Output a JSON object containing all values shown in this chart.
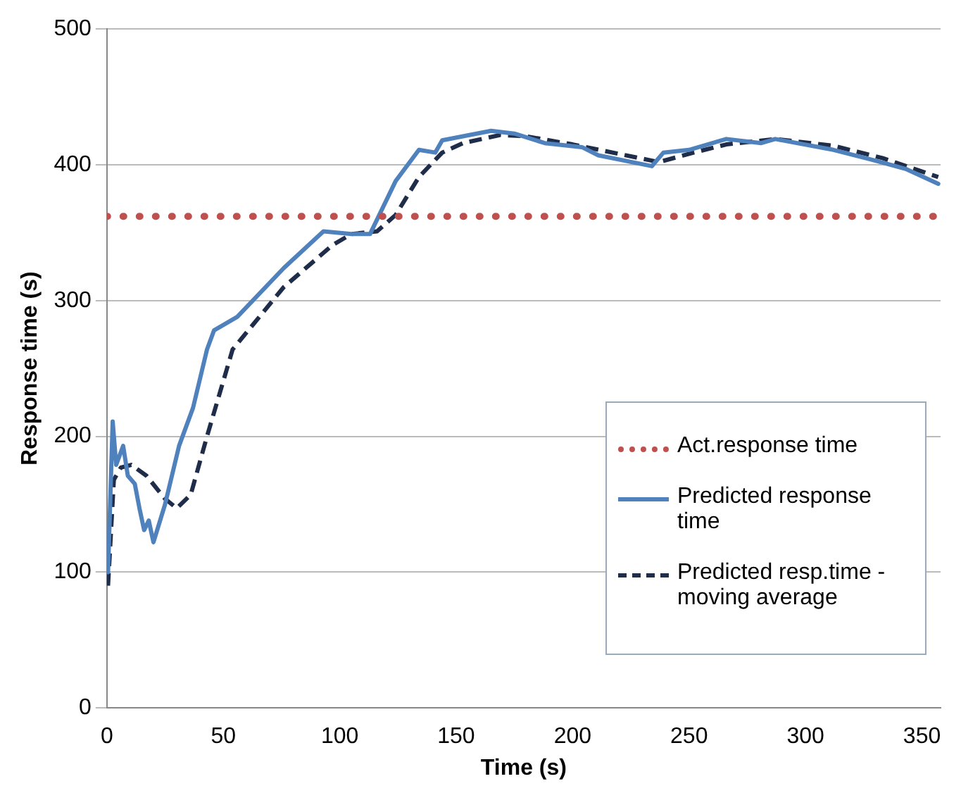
{
  "chart_data": {
    "type": "line",
    "xlabel": "Time (s)",
    "ylabel": "Response time (s)",
    "xlim": [
      0,
      358
    ],
    "xticks": [
      0,
      50,
      100,
      150,
      200,
      250,
      300,
      350
    ],
    "ylim": [
      0,
      500
    ],
    "yticks": [
      0,
      100,
      200,
      300,
      400,
      500
    ],
    "grid": "y",
    "legend": "bottom right",
    "marker": "none",
    "series": [
      {
        "name": "Act.response time",
        "color": "#c0504d",
        "line_style": "dotted",
        "x": [
          0,
          358
        ],
        "values": [
          362,
          362
        ]
      },
      {
        "name": "Predicted response time",
        "color": "#4f81bd",
        "line_style": "solid",
        "x": [
          0.5,
          2.5,
          4,
          7,
          9,
          12,
          14,
          16,
          18,
          20,
          25,
          31,
          37,
          43,
          46,
          56,
          76,
          93,
          105,
          113,
          124,
          134,
          141,
          144,
          165,
          175,
          188,
          204,
          211,
          234,
          239,
          250,
          266,
          281,
          287,
          312,
          328,
          343,
          357
        ],
        "values": [
          100,
          211,
          179,
          193,
          171,
          165,
          147,
          131,
          138,
          122,
          150,
          193,
          221,
          264,
          278,
          288,
          324,
          351,
          349,
          349,
          388,
          411,
          409,
          418,
          425,
          423,
          416,
          413,
          407,
          399,
          409,
          411,
          419,
          416,
          419,
          411,
          404,
          397,
          386
        ]
      },
      {
        "name": "Predicted resp.time - moving average",
        "color": "#1f2d4a",
        "line_style": "dashed",
        "x": [
          0.5,
          3,
          6,
          10.5,
          17,
          25,
          30,
          36,
          43,
          54,
          76,
          97,
          105,
          116,
          124,
          134,
          144,
          153,
          169,
          180,
          200,
          237,
          252,
          266,
          287,
          312,
          333,
          357
        ],
        "values": [
          90,
          168,
          177,
          179,
          171,
          154,
          147,
          157,
          200,
          264,
          310,
          341,
          349,
          351,
          363,
          391,
          409,
          416,
          422,
          421,
          415,
          402,
          409,
          415,
          419,
          414,
          405,
          391
        ]
      }
    ]
  }
}
